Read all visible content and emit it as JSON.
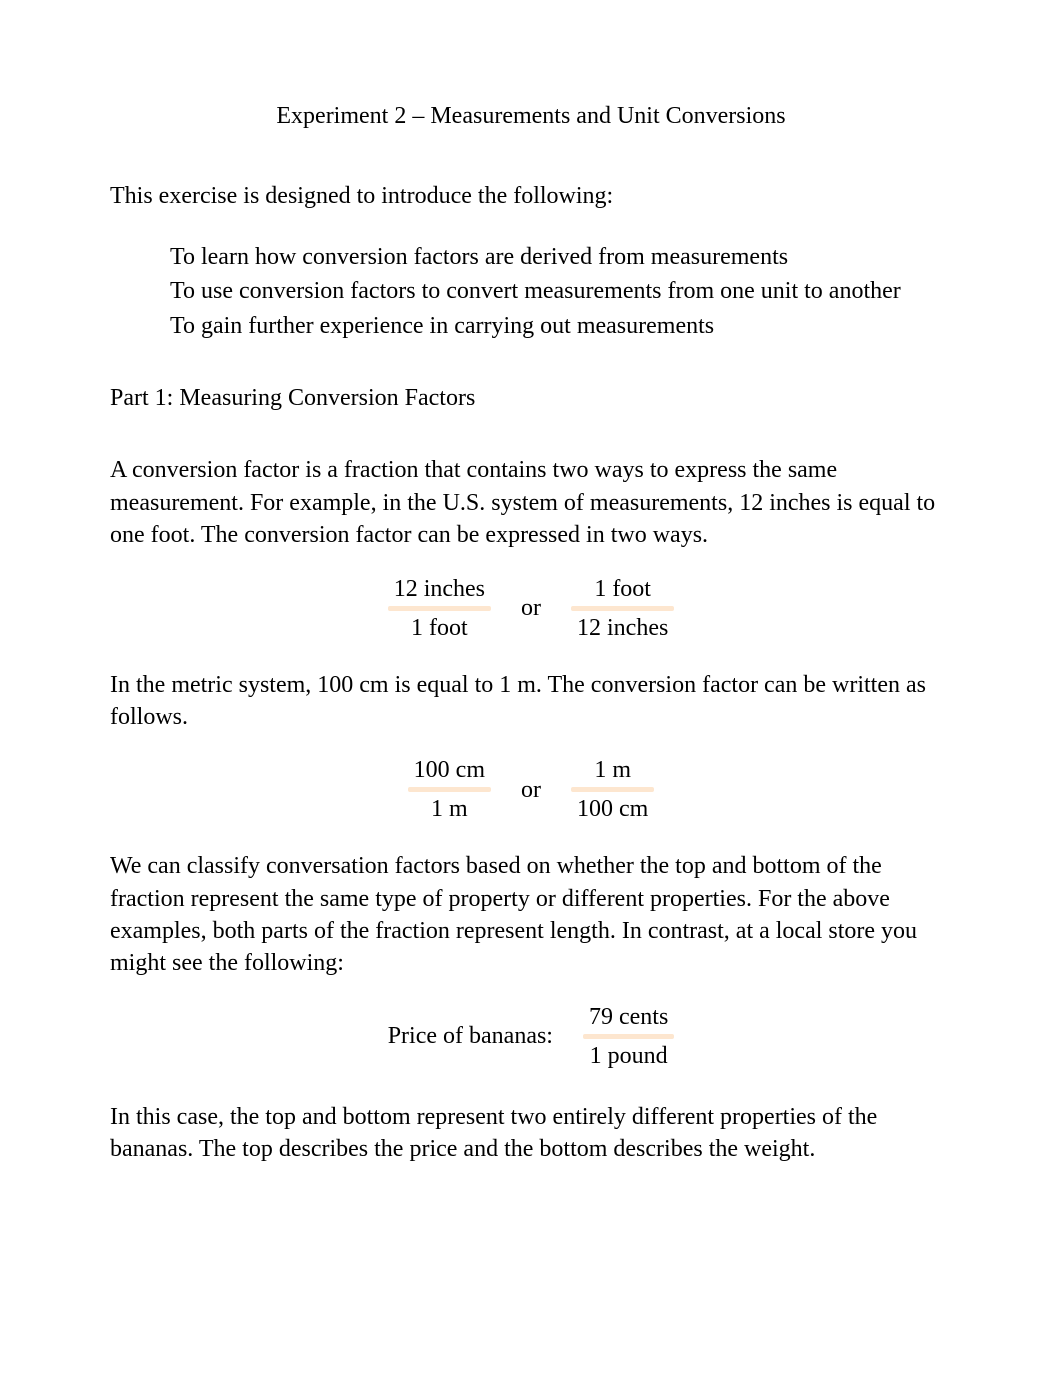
{
  "title": "Experiment 2 – Measurements and Unit Conversions",
  "intro": "This exercise is designed to introduce the following:",
  "bullets": {
    "b1": "To learn how conversion factors are derived from measurements",
    "b2": "To use conversion factors to convert measurements from one unit to another",
    "b3": "To gain further experience in carrying out measurements"
  },
  "part_heading": "Part 1:   Measuring Conversion Factors",
  "para1": "A conversion factor is a fraction that contains two ways to express the same measurement.  For example, in the U.S. system of measurements, 12 inches is equal to one foot.  The conversion factor can be expressed in two ways.",
  "frac1": {
    "left": {
      "num": "12 inches",
      "den": "1 foot"
    },
    "or": "or",
    "right": {
      "num": "1 foot",
      "den": "12 inches"
    }
  },
  "para2": "In the metric system, 100 cm is equal to 1 m.  The conversion factor can be written as follows.",
  "frac2": {
    "left": {
      "num": "100 cm",
      "den": "1 m"
    },
    "or": "or",
    "right": {
      "num": "1 m",
      "den": "100 cm"
    }
  },
  "para3": "We can classify conversation factors based on whether the top and bottom of the fraction represent the same type of property or different properties.  For the above examples, both parts of the fraction represent length.  In contrast, at a local store you might see the following:",
  "price": {
    "label": "Price of bananas:",
    "num": "79 cents",
    "den": "1 pound"
  },
  "para4": "In this case, the top and bottom represent two entirely different properties of the bananas.  The top describes the price and the bottom describes the weight.",
  "colors": {
    "text": "#000000",
    "background": "#ffffff",
    "fraction_bar": "#fde6cf"
  },
  "typography": {
    "font_family": "Times New Roman",
    "body_fontsize_pt": 18
  }
}
